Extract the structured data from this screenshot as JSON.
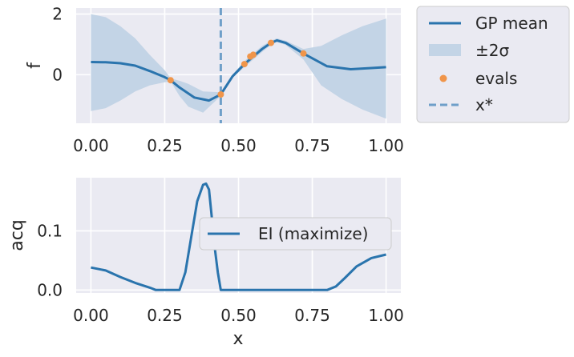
{
  "colors": {
    "panel_bg": "#eaeaf2",
    "grid": "#ffffff",
    "line": "#2a74ad",
    "band": "#c3d4e6",
    "evals": "#f0954a",
    "xstar": "#6f9fc9",
    "text": "#262626"
  },
  "chart_data": [
    {
      "type": "line",
      "ylabel": "f",
      "xlim": [
        -0.05,
        1.05
      ],
      "ylim": [
        -1.6,
        2.2
      ],
      "xticks": [
        "0.00",
        "0.25",
        "0.50",
        "0.75",
        "1.00"
      ],
      "yticks": [
        "0",
        "2"
      ],
      "grid": true,
      "legend": "outside-right",
      "x_star": 0.44,
      "series": [
        {
          "name": "GP mean",
          "x": [
            0.0,
            0.05,
            0.1,
            0.15,
            0.2,
            0.25,
            0.27,
            0.3,
            0.35,
            0.4,
            0.44,
            0.48,
            0.52,
            0.55,
            0.58,
            0.61,
            0.63,
            0.66,
            0.72,
            0.8,
            0.88,
            0.95,
            1.0
          ],
          "y": [
            0.42,
            0.41,
            0.38,
            0.3,
            0.12,
            -0.08,
            -0.18,
            -0.42,
            -0.75,
            -0.85,
            -0.65,
            -0.05,
            0.35,
            0.6,
            0.85,
            1.05,
            1.13,
            1.05,
            0.7,
            0.28,
            0.18,
            0.22,
            0.25
          ]
        },
        {
          "name": "±2σ",
          "x": [
            0.0,
            0.05,
            0.1,
            0.15,
            0.2,
            0.25,
            0.27,
            0.3,
            0.33,
            0.38,
            0.44,
            0.48,
            0.52,
            0.55,
            0.58,
            0.61,
            0.63,
            0.66,
            0.72,
            0.78,
            0.85,
            0.92,
            1.0
          ],
          "upper": [
            2.0,
            1.9,
            1.6,
            1.2,
            0.65,
            0.15,
            -0.12,
            -0.2,
            -0.3,
            -0.55,
            -0.58,
            0.0,
            0.45,
            0.7,
            0.95,
            1.12,
            1.2,
            1.12,
            0.85,
            0.95,
            1.3,
            1.6,
            1.85
          ],
          "lower": [
            -1.2,
            -1.1,
            -0.85,
            -0.55,
            -0.35,
            -0.25,
            -0.22,
            -0.7,
            -1.05,
            -1.25,
            -0.7,
            -0.1,
            0.25,
            0.5,
            0.75,
            0.98,
            1.08,
            0.98,
            0.5,
            -0.35,
            -0.8,
            -1.15,
            -1.45
          ]
        },
        {
          "name": "evals",
          "x": [
            0.27,
            0.44,
            0.52,
            0.54,
            0.55,
            0.61,
            0.72
          ],
          "y": [
            -0.18,
            -0.65,
            0.35,
            0.6,
            0.66,
            1.05,
            0.7
          ]
        },
        {
          "name": "x*",
          "x": [
            0.44
          ]
        }
      ]
    },
    {
      "type": "line",
      "xlabel": "x",
      "ylabel": "acq",
      "xlim": [
        -0.05,
        1.05
      ],
      "ylim": [
        -0.005,
        0.19
      ],
      "xticks": [
        "0.00",
        "0.25",
        "0.50",
        "0.75",
        "1.00"
      ],
      "yticks": [
        "0.0",
        "0.1"
      ],
      "grid": true,
      "legend": "center-right",
      "series": [
        {
          "name": "EI (maximize)",
          "x": [
            0.0,
            0.05,
            0.1,
            0.15,
            0.2,
            0.22,
            0.25,
            0.28,
            0.3,
            0.32,
            0.34,
            0.36,
            0.38,
            0.39,
            0.4,
            0.41,
            0.42,
            0.43,
            0.44,
            0.45,
            0.5,
            0.6,
            0.7,
            0.8,
            0.83,
            0.86,
            0.9,
            0.95,
            1.0
          ],
          "y": [
            0.038,
            0.033,
            0.022,
            0.012,
            0.004,
            0.0,
            0.0,
            0.0,
            0.0,
            0.03,
            0.09,
            0.15,
            0.178,
            0.18,
            0.17,
            0.12,
            0.07,
            0.03,
            0.0,
            0.0,
            0.0,
            0.0,
            0.0,
            0.0,
            0.006,
            0.02,
            0.04,
            0.054,
            0.06
          ]
        }
      ]
    }
  ]
}
